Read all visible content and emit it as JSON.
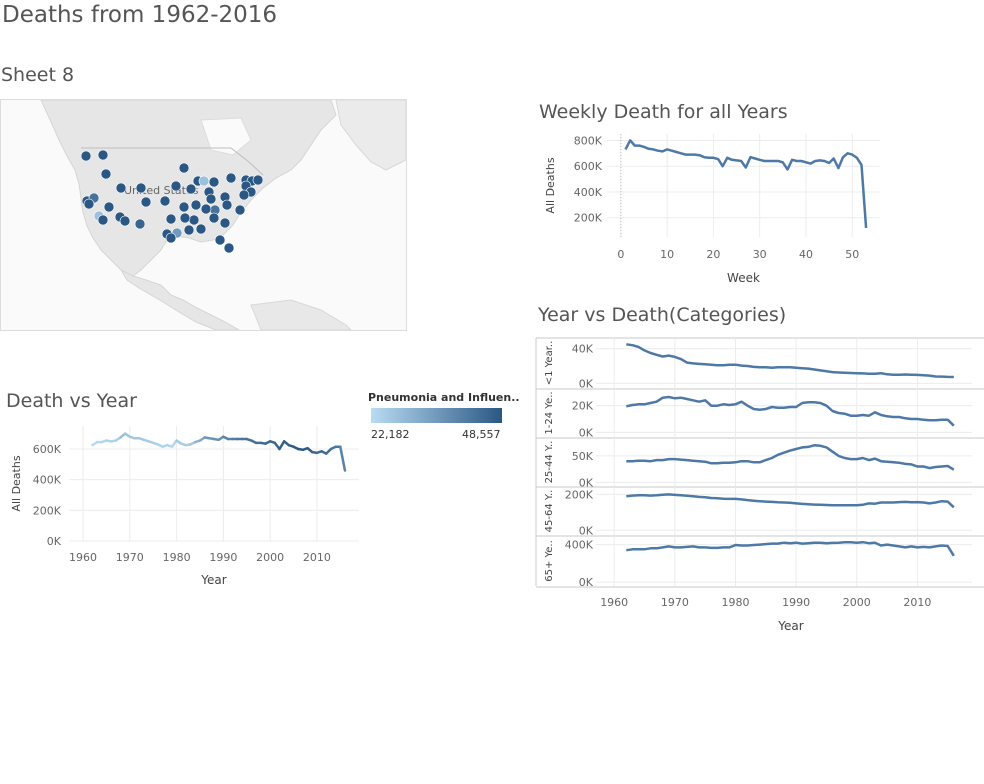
{
  "dashboard": {
    "title": "Deaths from 1962-2016"
  },
  "map": {
    "title": "Sheet 8",
    "country_label": "United States"
  },
  "colors": {
    "line": "#4e79a7",
    "dot_dark": "#2a5783",
    "dot_light": "#b9dcf4",
    "grid": "#ececec",
    "axis_text": "#666666"
  },
  "legend": {
    "title": "Pneumonia and Influen..",
    "min_label": "22,182",
    "max_label": "48,557"
  },
  "chart_data": [
    {
      "id": "weekly",
      "type": "line",
      "title": "Weekly Death for all Years",
      "xlabel": "Week",
      "ylabel": "All Deaths",
      "xlim": [
        -3,
        56
      ],
      "ylim": [
        50000,
        850000
      ],
      "x_ticks": [
        0,
        10,
        20,
        30,
        40,
        50
      ],
      "x_tick_labels": [
        "0",
        "10",
        "20",
        "30",
        "40",
        "50"
      ],
      "y_ticks": [
        200000,
        400000,
        600000,
        800000
      ],
      "y_tick_labels": [
        "200K",
        "400K",
        "600K",
        "800K"
      ],
      "x": [
        1,
        2,
        3,
        4,
        5,
        6,
        7,
        8,
        9,
        10,
        11,
        12,
        13,
        14,
        15,
        16,
        17,
        18,
        19,
        20,
        21,
        22,
        23,
        24,
        25,
        26,
        27,
        28,
        29,
        30,
        31,
        32,
        33,
        34,
        35,
        36,
        37,
        38,
        39,
        40,
        41,
        42,
        43,
        44,
        45,
        46,
        47,
        48,
        49,
        50,
        51,
        52,
        53
      ],
      "values": [
        730000,
        800000,
        760000,
        760000,
        750000,
        735000,
        730000,
        720000,
        715000,
        730000,
        720000,
        710000,
        700000,
        690000,
        690000,
        690000,
        685000,
        670000,
        665000,
        665000,
        655000,
        600000,
        665000,
        650000,
        645000,
        640000,
        590000,
        670000,
        660000,
        650000,
        640000,
        640000,
        640000,
        640000,
        630000,
        575000,
        650000,
        640000,
        640000,
        630000,
        620000,
        640000,
        645000,
        640000,
        625000,
        660000,
        585000,
        670000,
        700000,
        690000,
        665000,
        610000,
        120000
      ]
    },
    {
      "id": "year",
      "type": "line",
      "title": "Death vs Year",
      "xlabel": "Year",
      "ylabel": "All Deaths",
      "xlim": [
        1957,
        2019
      ],
      "ylim": [
        0,
        750000
      ],
      "x_ticks": [
        1960,
        1970,
        1980,
        1990,
        2000,
        2010
      ],
      "x_tick_labels": [
        "1960",
        "1970",
        "1980",
        "1990",
        "2000",
        "2010"
      ],
      "y_ticks": [
        0,
        200000,
        400000,
        600000
      ],
      "y_tick_labels": [
        "0K",
        "200K",
        "400K",
        "600K"
      ],
      "x": [
        1962,
        1963,
        1964,
        1965,
        1966,
        1967,
        1968,
        1969,
        1970,
        1971,
        1972,
        1973,
        1974,
        1975,
        1976,
        1977,
        1978,
        1979,
        1980,
        1981,
        1982,
        1983,
        1984,
        1985,
        1986,
        1987,
        1988,
        1989,
        1990,
        1991,
        1992,
        1993,
        1994,
        1995,
        1996,
        1997,
        1998,
        1999,
        2000,
        2001,
        2002,
        2003,
        2004,
        2005,
        2006,
        2007,
        2008,
        2009,
        2010,
        2011,
        2012,
        2013,
        2014,
        2015,
        2016
      ],
      "values": [
        625000,
        645000,
        645000,
        655000,
        650000,
        655000,
        675000,
        700000,
        680000,
        670000,
        670000,
        660000,
        650000,
        640000,
        630000,
        615000,
        625000,
        615000,
        655000,
        635000,
        625000,
        630000,
        645000,
        655000,
        675000,
        670000,
        665000,
        660000,
        680000,
        665000,
        665000,
        665000,
        665000,
        665000,
        655000,
        640000,
        640000,
        635000,
        650000,
        640000,
        600000,
        650000,
        625000,
        615000,
        600000,
        595000,
        605000,
        580000,
        575000,
        585000,
        570000,
        600000,
        615000,
        615000,
        460000
      ],
      "color_values": [
        22182,
        23000,
        23500,
        24000,
        24000,
        24500,
        28000,
        27000,
        26500,
        26000,
        26000,
        25500,
        25000,
        24500,
        24000,
        23500,
        23500,
        23000,
        26000,
        25500,
        25000,
        26000,
        30000,
        32000,
        36000,
        36000,
        37000,
        37500,
        40000,
        40000,
        41000,
        42000,
        42500,
        43000,
        43500,
        44000,
        44500,
        45000,
        45500,
        46000,
        46500,
        47000,
        47500,
        48000,
        48557,
        48000,
        47500,
        46000,
        45000,
        44500,
        44000,
        43000,
        42500,
        40000,
        33000
      ]
    },
    {
      "id": "categories",
      "type": "line",
      "title": "Year vs Death(Categories)",
      "xlabel": "Year",
      "xlim": [
        1957,
        2019
      ],
      "x_ticks": [
        1960,
        1970,
        1980,
        1990,
        2000,
        2010
      ],
      "x_tick_labels": [
        "1960",
        "1970",
        "1980",
        "1990",
        "2000",
        "2010"
      ],
      "x": [
        1962,
        1963,
        1964,
        1965,
        1966,
        1967,
        1968,
        1969,
        1970,
        1971,
        1972,
        1973,
        1974,
        1975,
        1976,
        1977,
        1978,
        1979,
        1980,
        1981,
        1982,
        1983,
        1984,
        1985,
        1986,
        1987,
        1988,
        1989,
        1990,
        1991,
        1992,
        1993,
        1994,
        1995,
        1996,
        1997,
        1998,
        1999,
        2000,
        2001,
        2002,
        2003,
        2004,
        2005,
        2006,
        2007,
        2008,
        2009,
        2010,
        2011,
        2012,
        2013,
        2014,
        2015,
        2016
      ],
      "series": [
        {
          "name": "<1 Year..",
          "ylim": [
            -3000,
            50000
          ],
          "y_ticks": [
            0,
            40000
          ],
          "y_tick_labels": [
            "0K",
            "40K"
          ],
          "values": [
            45000,
            44000,
            42000,
            38000,
            35000,
            33000,
            31000,
            32000,
            30500,
            28000,
            24000,
            23000,
            22500,
            22000,
            21500,
            21000,
            21000,
            21500,
            21500,
            20500,
            20000,
            19000,
            18500,
            18500,
            18000,
            18500,
            18500,
            18500,
            18000,
            17500,
            17000,
            16000,
            15000,
            14000,
            13000,
            12500,
            12200,
            12000,
            11800,
            11500,
            11000,
            11000,
            11800,
            10500,
            10000,
            10000,
            10200,
            10000,
            9800,
            9500,
            9000,
            8000,
            7800,
            7500,
            7400
          ]
        },
        {
          "name": "1-24 Ye..",
          "ylim": [
            -2000,
            31000
          ],
          "y_ticks": [
            0,
            20000
          ],
          "y_tick_labels": [
            "0K",
            "20K"
          ],
          "values": [
            19500,
            20500,
            21000,
            21000,
            22000,
            23000,
            26000,
            26500,
            25500,
            26000,
            25000,
            24000,
            23000,
            24000,
            20000,
            20000,
            21000,
            20500,
            21000,
            23000,
            20000,
            17500,
            17000,
            17500,
            19000,
            18500,
            18500,
            19000,
            19000,
            22000,
            22500,
            22500,
            22000,
            20000,
            16000,
            14500,
            14000,
            12500,
            12500,
            13000,
            12500,
            15000,
            13000,
            12000,
            11500,
            11500,
            10500,
            10000,
            10000,
            9500,
            9000,
            9000,
            9500,
            9500,
            5000
          ]
        },
        {
          "name": "25-44 Y..",
          "ylim": [
            -3000,
            80000
          ],
          "y_ticks": [
            0,
            50000
          ],
          "y_tick_labels": [
            "0K",
            "50K"
          ],
          "values": [
            40000,
            40000,
            41000,
            41000,
            40000,
            42000,
            42000,
            44000,
            44000,
            43000,
            42000,
            41000,
            40000,
            39000,
            36000,
            36000,
            37000,
            37000,
            38000,
            40000,
            40000,
            38000,
            38000,
            42000,
            46000,
            52000,
            56000,
            60000,
            63000,
            66000,
            67000,
            70000,
            69000,
            66000,
            58000,
            50000,
            46000,
            44000,
            44000,
            46000,
            42000,
            45000,
            40000,
            39000,
            38000,
            37000,
            35000,
            34000,
            30000,
            30000,
            27000,
            29000,
            30000,
            31000,
            24000
          ]
        },
        {
          "name": "45-64 Y..",
          "ylim": [
            -15000,
            230000
          ],
          "y_ticks": [
            0,
            200000
          ],
          "y_tick_labels": [
            "0K",
            "200K"
          ],
          "values": [
            190000,
            193000,
            195000,
            195000,
            193000,
            195000,
            198000,
            200000,
            197000,
            195000,
            192000,
            190000,
            186000,
            184000,
            180000,
            178000,
            176000,
            175000,
            175000,
            172000,
            168000,
            165000,
            162000,
            160000,
            158000,
            156000,
            155000,
            153000,
            150000,
            147000,
            145000,
            143000,
            142000,
            141000,
            140000,
            140000,
            139000,
            139000,
            140000,
            142000,
            150000,
            148000,
            155000,
            155000,
            155000,
            157000,
            158000,
            156000,
            157000,
            155000,
            150000,
            155000,
            162000,
            160000,
            128000
          ]
        },
        {
          "name": "65+ Ye..",
          "ylim": [
            -20000,
            470000
          ],
          "y_ticks": [
            0,
            400000
          ],
          "y_tick_labels": [
            "0K",
            "400K"
          ],
          "values": [
            340000,
            350000,
            350000,
            350000,
            360000,
            360000,
            370000,
            380000,
            370000,
            370000,
            375000,
            380000,
            370000,
            370000,
            365000,
            365000,
            370000,
            370000,
            395000,
            390000,
            390000,
            395000,
            400000,
            405000,
            410000,
            410000,
            420000,
            415000,
            420000,
            410000,
            415000,
            420000,
            420000,
            415000,
            418000,
            420000,
            425000,
            425000,
            420000,
            425000,
            415000,
            420000,
            390000,
            400000,
            390000,
            380000,
            370000,
            380000,
            370000,
            375000,
            370000,
            380000,
            390000,
            385000,
            280000
          ]
        }
      ]
    }
  ]
}
